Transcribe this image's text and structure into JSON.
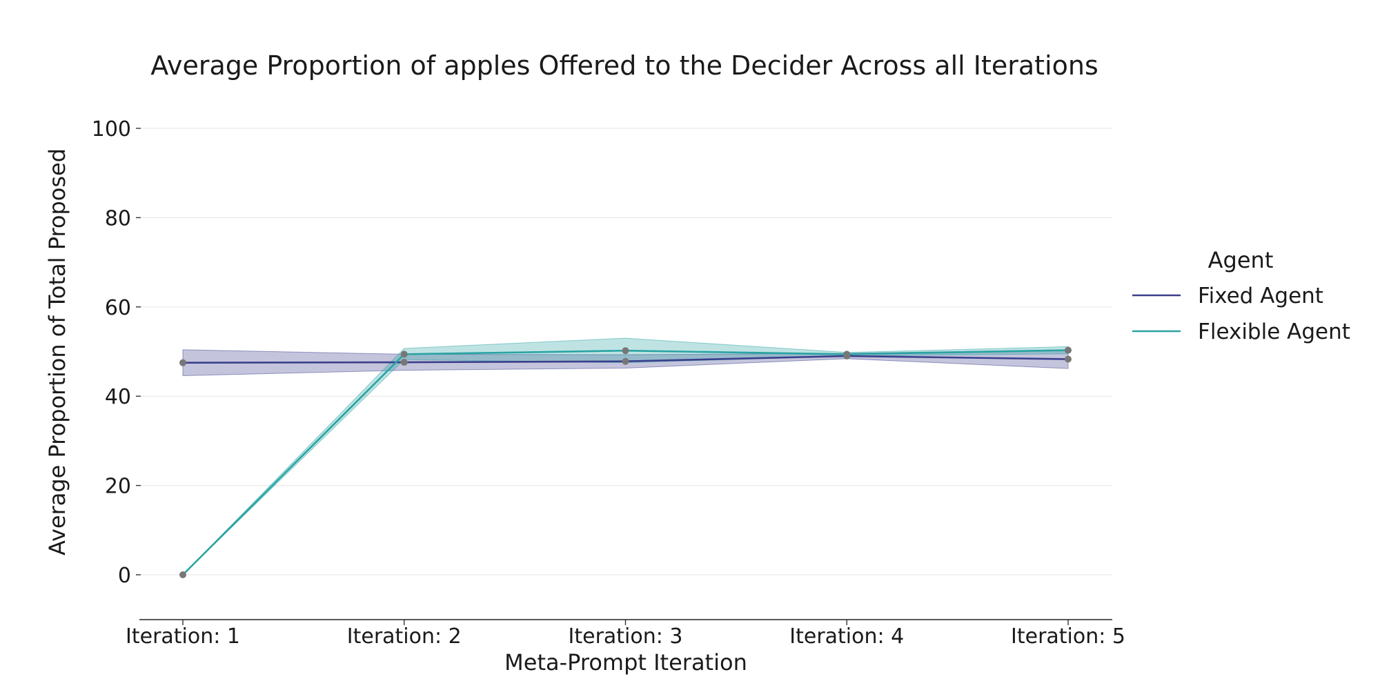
{
  "chart_data": {
    "type": "line",
    "title": "Average Proportion of apples Offered to the Decider Across all Iterations",
    "xlabel": "Meta-Prompt Iteration",
    "ylabel": "Average Proportion of Total Proposed",
    "categories": [
      "Iteration: 1",
      "Iteration: 2",
      "Iteration: 3",
      "Iteration: 4",
      "Iteration: 5"
    ],
    "ylim": [
      -10,
      100
    ],
    "yticks": [
      0,
      20,
      40,
      60,
      80,
      100
    ],
    "grid": true,
    "legend": {
      "title": "Agent",
      "position": "right"
    },
    "series": [
      {
        "name": "Fixed Agent",
        "color": "#3b3f8c",
        "values": [
          47.5,
          47.6,
          47.8,
          49.0,
          48.3
        ],
        "ci_low": [
          44.6,
          45.8,
          46.3,
          48.4,
          46.2
        ],
        "ci_high": [
          50.4,
          49.4,
          49.3,
          49.6,
          50.4
        ]
      },
      {
        "name": "Flexible Agent",
        "color": "#2aa3a3",
        "values": [
          0.0,
          49.4,
          50.2,
          49.4,
          50.3
        ],
        "ci_low": [
          0.0,
          48.2,
          47.5,
          49.0,
          49.5
        ],
        "ci_high": [
          0.0,
          50.7,
          53.0,
          49.8,
          51.1
        ]
      }
    ],
    "marker_color": "#777777"
  }
}
